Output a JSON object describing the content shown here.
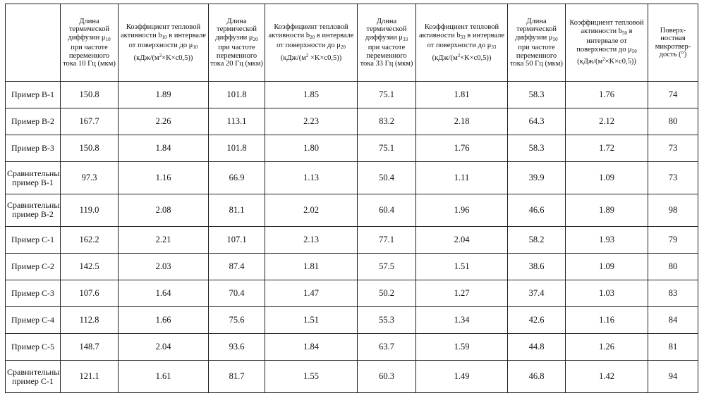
{
  "headers": {
    "h1": "Длина термической диффузии μ",
    "h1_sub": "10",
    "h1_tail": " при частоте переменного тока 10 Гц (мкм)",
    "h2": "Коэффициент тепловой активности b",
    "h2_sub": "10",
    "h2_mid": " в интервале от поверхности до μ",
    "h2_sub2": "10",
    "h2_tail": " (кДж/(м",
    "h2_sup": "2",
    "h2_end": "×K×c0,5))",
    "h3": "Длина термической диффузии μ",
    "h3_sub": "20",
    "h3_tail": " при частоте переменного тока 20 Гц (мкм)",
    "h4": "Коэффициент тепловой активности b",
    "h4_sub": "20",
    "h4_mid": " в интервале от поверхности до μ",
    "h4_sub2": "20",
    "h4_tail": " (кДж/(м",
    "h4_sup": "2",
    "h4_end": " ×K×c0,5))",
    "h5": "Длина термической диффузии μ",
    "h5_sub": "33",
    "h5_tail": " при частоте переменного тока 33 Гц (мкм)",
    "h6": "Коэффициент тепловой активности b",
    "h6_sub": "33",
    "h6_mid": " в интервале от поверхности до μ",
    "h6_sub2": "33",
    "h6_tail": " (кДж/(м",
    "h6_sup": "2",
    "h6_end": "×K×c0,5))",
    "h7": "Длина термической диффузии μ",
    "h7_sub": "50",
    "h7_tail": " при частоте переменного тока 50 Гц (мкм)",
    "h8": "Коэффициент тепловой активности b",
    "h8_sub": "50",
    "h8_mid": " в интервале от поверхности до μ",
    "h8_sub2": "50",
    "h8_tail": " (кДж/(м",
    "h8_sup": "2",
    "h8_end": "×K×c0,5))",
    "h9": "Поверх-ностная микротвер-дость (°)"
  },
  "rows": [
    {
      "label": "Пример B-1",
      "values": [
        "150.8",
        "1.89",
        "101.8",
        "1.85",
        "75.1",
        "1.81",
        "58.3",
        "1.76",
        "74"
      ]
    },
    {
      "label": "Пример B-2",
      "values": [
        "167.7",
        "2.26",
        "113.1",
        "2.23",
        "83.2",
        "2.18",
        "64.3",
        "2.12",
        "80"
      ]
    },
    {
      "label": "Пример B-3",
      "values": [
        "150.8",
        "1.84",
        "101.8",
        "1.80",
        "75.1",
        "1.76",
        "58.3",
        "1.72",
        "73"
      ]
    },
    {
      "label": "Сравнительный пример B-1",
      "values": [
        "97.3",
        "1.16",
        "66.9",
        "1.13",
        "50.4",
        "1.11",
        "39.9",
        "1.09",
        "73"
      ]
    },
    {
      "label": "Сравнительный пример B-2",
      "values": [
        "119.0",
        "2.08",
        "81.1",
        "2.02",
        "60.4",
        "1.96",
        "46.6",
        "1.89",
        "98"
      ]
    },
    {
      "label": "Пример C-1",
      "values": [
        "162.2",
        "2.21",
        "107.1",
        "2.13",
        "77.1",
        "2.04",
        "58.2",
        "1.93",
        "79"
      ]
    },
    {
      "label": "Пример C-2",
      "values": [
        "142.5",
        "2.03",
        "87.4",
        "1.81",
        "57.5",
        "1.51",
        "38.6",
        "1.09",
        "80"
      ]
    },
    {
      "label": "Пример C-3",
      "values": [
        "107.6",
        "1.64",
        "70.4",
        "1.47",
        "50.2",
        "1.27",
        "37.4",
        "1.03",
        "83"
      ]
    },
    {
      "label": "Пример C-4",
      "values": [
        "112.8",
        "1.66",
        "75.6",
        "1.51",
        "55.3",
        "1.34",
        "42.6",
        "1.16",
        "84"
      ]
    },
    {
      "label": "Пример C-5",
      "values": [
        "148.7",
        "2.04",
        "93.6",
        "1.84",
        "63.7",
        "1.59",
        "44.8",
        "1.26",
        "81"
      ]
    },
    {
      "label": "Сравнительный пример C-1",
      "values": [
        "121.1",
        "1.61",
        "81.7",
        "1.55",
        "60.3",
        "1.49",
        "46.8",
        "1.42",
        "94"
      ]
    }
  ]
}
